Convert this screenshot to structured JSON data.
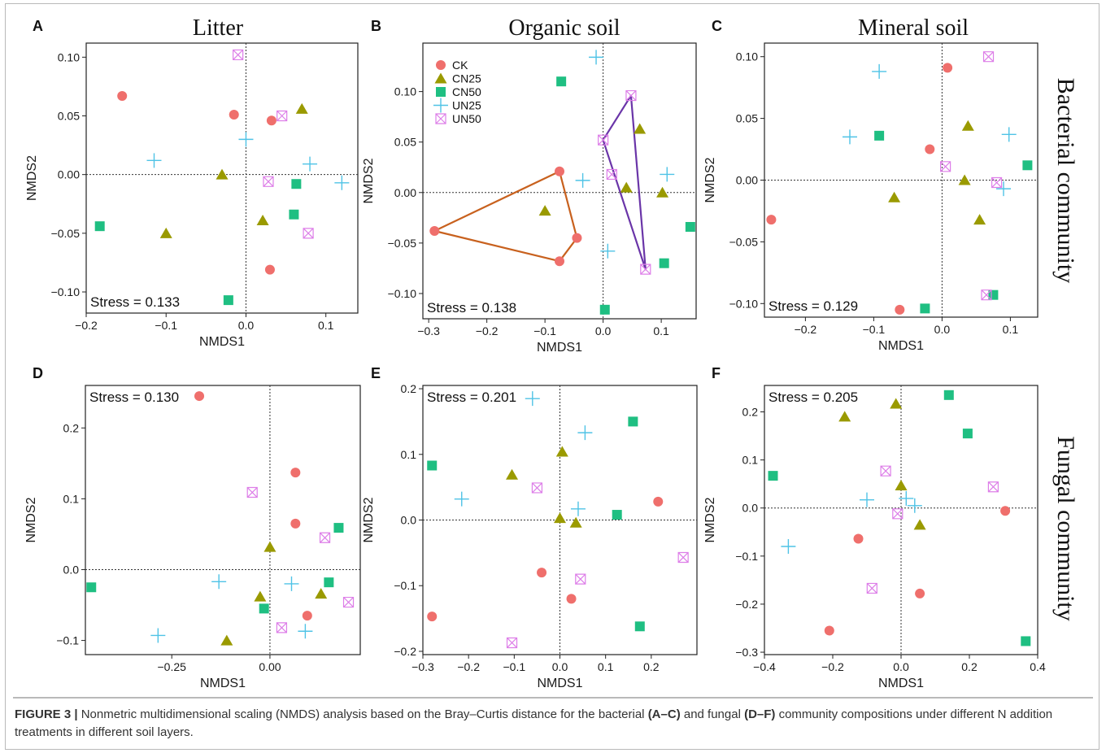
{
  "colors": {
    "CK": "#ef6f6c",
    "CN25": "#9a9a00",
    "CN50": "#1fbf82",
    "UN25": "#4fc3e6",
    "UN50": "#dd7ee8",
    "hull_CK": "#c8611e",
    "hull_UN50": "#6a35a8"
  },
  "legend": [
    "CK",
    "CN25",
    "CN50",
    "UN25",
    "UN50"
  ],
  "row_labels": [
    "Bacterial community",
    "Fungal community"
  ],
  "caption": {
    "label": "FIGURE 3 |",
    "text1": " Nonmetric multidimensional scaling (NMDS) analysis based on the Bray–Curtis distance for the bacterial ",
    "ref1": "(A–C)",
    "text2": " and fungal ",
    "ref2": "(D–F)",
    "text3": " community compositions under different N addition treatments in different soil layers."
  },
  "chart_data": [
    {
      "type": "scatter",
      "letter": "A",
      "title": "Litter",
      "xlabel": "NMDS1",
      "ylabel": "NMDS2",
      "stress": "Stress = 0.133",
      "xlim": [
        -0.2,
        0.14
      ],
      "ylim": [
        -0.118,
        0.112
      ],
      "xticks": [
        -0.2,
        -0.1,
        0.0,
        0.1
      ],
      "xticklabels": [
        "−0.2",
        "−0.1",
        "0.0",
        "0.1"
      ],
      "yticks": [
        -0.1,
        -0.05,
        0.0,
        0.05,
        0.1
      ],
      "yticklabels": [
        "−0.10",
        "−0.05",
        "0.00",
        "0.05",
        "0.10"
      ],
      "series": [
        {
          "name": "CK",
          "points": [
            [
              -0.155,
              0.067
            ],
            [
              -0.015,
              0.051
            ],
            [
              0.032,
              0.046
            ],
            [
              0.03,
              -0.081
            ]
          ]
        },
        {
          "name": "CN25",
          "points": [
            [
              0.07,
              0.056
            ],
            [
              -0.03,
              0.0
            ],
            [
              -0.1,
              -0.05
            ],
            [
              0.021,
              -0.039
            ]
          ]
        },
        {
          "name": "CN50",
          "points": [
            [
              -0.183,
              -0.044
            ],
            [
              0.063,
              -0.008
            ],
            [
              0.06,
              -0.034
            ],
            [
              -0.022,
              -0.107
            ]
          ]
        },
        {
          "name": "UN25",
          "points": [
            [
              -0.115,
              0.012
            ],
            [
              0.0,
              0.03
            ],
            [
              0.08,
              0.009
            ],
            [
              0.12,
              -0.007
            ]
          ]
        },
        {
          "name": "UN50",
          "points": [
            [
              -0.01,
              0.102
            ],
            [
              0.045,
              0.05
            ],
            [
              0.028,
              -0.006
            ],
            [
              0.078,
              -0.05
            ]
          ]
        }
      ],
      "hulls": []
    },
    {
      "type": "scatter",
      "letter": "B",
      "title": "Organic soil",
      "xlabel": "NMDS1",
      "ylabel": "NMDS2",
      "stress": "Stress = 0.138",
      "xlim": [
        -0.31,
        0.16
      ],
      "ylim": [
        -0.125,
        0.148
      ],
      "xticks": [
        -0.3,
        -0.2,
        -0.1,
        0.0,
        0.1
      ],
      "xticklabels": [
        "−0.3",
        "−0.2",
        "−0.1",
        "0.0",
        "0.1"
      ],
      "yticks": [
        -0.1,
        -0.05,
        0.0,
        0.05,
        0.1
      ],
      "yticklabels": [
        "−0.10",
        "−0.05",
        "0.00",
        "0.05",
        "0.10"
      ],
      "legend_position": "top-left",
      "series": [
        {
          "name": "CK",
          "points": [
            [
              -0.075,
              0.021
            ],
            [
              -0.045,
              -0.045
            ],
            [
              -0.075,
              -0.068
            ],
            [
              -0.29,
              -0.038
            ]
          ]
        },
        {
          "name": "CN25",
          "points": [
            [
              0.063,
              0.063
            ],
            [
              0.04,
              0.005
            ],
            [
              0.102,
              0.0
            ],
            [
              -0.1,
              -0.018
            ]
          ]
        },
        {
          "name": "CN50",
          "points": [
            [
              -0.072,
              0.11
            ],
            [
              0.15,
              -0.034
            ],
            [
              0.105,
              -0.07
            ],
            [
              0.003,
              -0.116
            ]
          ]
        },
        {
          "name": "UN25",
          "points": [
            [
              -0.012,
              0.134
            ],
            [
              -0.035,
              0.012
            ],
            [
              0.11,
              0.018
            ],
            [
              0.008,
              -0.058
            ]
          ]
        },
        {
          "name": "UN50",
          "points": [
            [
              0.048,
              0.096
            ],
            [
              0.0,
              0.052
            ],
            [
              0.015,
              0.018
            ],
            [
              0.073,
              -0.076
            ]
          ]
        }
      ],
      "hulls": [
        {
          "name": "CK",
          "points": [
            [
              -0.075,
              0.021
            ],
            [
              -0.045,
              -0.045
            ],
            [
              -0.075,
              -0.068
            ],
            [
              -0.29,
              -0.038
            ]
          ]
        },
        {
          "name": "UN50",
          "points": [
            [
              0.048,
              0.096
            ],
            [
              0.073,
              -0.076
            ],
            [
              0.0,
              0.052
            ]
          ]
        }
      ]
    },
    {
      "type": "scatter",
      "letter": "C",
      "title": "Mineral soil",
      "xlabel": "NMDS1",
      "ylabel": "NMDS2",
      "stress": "Stress = 0.129",
      "xlim": [
        -0.26,
        0.14
      ],
      "ylim": [
        -0.111,
        0.111
      ],
      "xticks": [
        -0.2,
        -0.1,
        0.0,
        0.1
      ],
      "xticklabels": [
        "−0.2",
        "−0.1",
        "0.0",
        "0.1"
      ],
      "yticks": [
        -0.1,
        -0.05,
        0.0,
        0.05,
        0.1
      ],
      "yticklabels": [
        "−0.10",
        "−0.05",
        "0.00",
        "0.05",
        "0.10"
      ],
      "series": [
        {
          "name": "CK",
          "points": [
            [
              0.008,
              0.091
            ],
            [
              -0.018,
              0.025
            ],
            [
              -0.25,
              -0.032
            ],
            [
              -0.062,
              -0.105
            ]
          ]
        },
        {
          "name": "CN25",
          "points": [
            [
              0.038,
              0.044
            ],
            [
              -0.07,
              -0.014
            ],
            [
              0.033,
              0.0
            ],
            [
              0.055,
              -0.032
            ]
          ]
        },
        {
          "name": "CN50",
          "points": [
            [
              -0.092,
              0.036
            ],
            [
              0.125,
              0.012
            ],
            [
              -0.025,
              -0.104
            ],
            [
              0.075,
              -0.093
            ]
          ]
        },
        {
          "name": "UN25",
          "points": [
            [
              -0.092,
              0.088
            ],
            [
              -0.135,
              0.035
            ],
            [
              0.098,
              0.037
            ],
            [
              0.09,
              -0.007
            ]
          ]
        },
        {
          "name": "UN50",
          "points": [
            [
              0.068,
              0.1
            ],
            [
              0.005,
              0.011
            ],
            [
              0.08,
              -0.002
            ],
            [
              0.065,
              -0.093
            ]
          ]
        }
      ],
      "hulls": []
    },
    {
      "type": "scatter",
      "letter": "D",
      "title": "",
      "xlabel": "NMDS1",
      "ylabel": "NMDS2",
      "stress": "Stress = 0.130",
      "xlim": [
        -0.47,
        0.23
      ],
      "ylim": [
        -0.12,
        0.26
      ],
      "xticks": [
        -0.25,
        0.0
      ],
      "xticklabels": [
        "−0.25",
        "0.00"
      ],
      "yticks": [
        -0.1,
        0.0,
        0.1,
        0.2
      ],
      "yticklabels": [
        "−0.1",
        "0.0",
        "0.1",
        "0.2"
      ],
      "series": [
        {
          "name": "CK",
          "points": [
            [
              -0.18,
              0.245
            ],
            [
              0.065,
              0.137
            ],
            [
              0.065,
              0.065
            ],
            [
              0.095,
              -0.065
            ]
          ]
        },
        {
          "name": "CN25",
          "points": [
            [
              0.0,
              0.032
            ],
            [
              -0.025,
              -0.038
            ],
            [
              0.13,
              -0.034
            ],
            [
              -0.11,
              -0.1
            ]
          ]
        },
        {
          "name": "CN50",
          "points": [
            [
              0.175,
              0.059
            ],
            [
              0.15,
              -0.018
            ],
            [
              -0.015,
              -0.055
            ],
            [
              -0.455,
              -0.025
            ]
          ]
        },
        {
          "name": "UN25",
          "points": [
            [
              -0.13,
              -0.017
            ],
            [
              0.055,
              -0.02
            ],
            [
              0.09,
              -0.087
            ],
            [
              -0.285,
              -0.093
            ]
          ]
        },
        {
          "name": "UN50",
          "points": [
            [
              -0.045,
              0.109
            ],
            [
              0.14,
              0.045
            ],
            [
              0.2,
              -0.046
            ],
            [
              0.03,
              -0.082
            ]
          ]
        }
      ],
      "hulls": []
    },
    {
      "type": "scatter",
      "letter": "E",
      "title": "",
      "xlabel": "NMDS1",
      "ylabel": "NMDS2",
      "stress": "Stress = 0.201",
      "xlim": [
        -0.3,
        0.3
      ],
      "ylim": [
        -0.205,
        0.205
      ],
      "xticks": [
        -0.3,
        -0.2,
        -0.1,
        0.0,
        0.1,
        0.2
      ],
      "xticklabels": [
        "−0.3",
        "−0.2",
        "−0.1",
        "0.0",
        "0.1",
        "0.2"
      ],
      "yticks": [
        -0.2,
        -0.1,
        0.0,
        0.1,
        0.2
      ],
      "yticklabels": [
        "−0.2",
        "−0.1",
        "0.0",
        "0.1",
        "0.2"
      ],
      "series": [
        {
          "name": "CK",
          "points": [
            [
              0.215,
              0.028
            ],
            [
              -0.04,
              -0.08
            ],
            [
              0.025,
              -0.12
            ],
            [
              -0.28,
              -0.147
            ]
          ]
        },
        {
          "name": "CN25",
          "points": [
            [
              -0.105,
              0.069
            ],
            [
              0.005,
              0.104
            ],
            [
              0.0,
              0.003
            ],
            [
              0.035,
              -0.004
            ]
          ]
        },
        {
          "name": "CN50",
          "points": [
            [
              0.16,
              0.15
            ],
            [
              -0.28,
              0.083
            ],
            [
              0.125,
              0.008
            ],
            [
              0.175,
              -0.162
            ]
          ]
        },
        {
          "name": "UN25",
          "points": [
            [
              -0.06,
              0.185
            ],
            [
              0.055,
              0.133
            ],
            [
              -0.215,
              0.032
            ],
            [
              0.04,
              0.017
            ]
          ]
        },
        {
          "name": "UN50",
          "points": [
            [
              -0.05,
              0.049
            ],
            [
              0.045,
              -0.09
            ],
            [
              0.27,
              -0.057
            ],
            [
              -0.105,
              -0.187
            ]
          ]
        }
      ],
      "hulls": []
    },
    {
      "type": "scatter",
      "letter": "F",
      "title": "",
      "xlabel": "NMDS1",
      "ylabel": "NMDS2",
      "stress": "Stress = 0.205",
      "xlim": [
        -0.4,
        0.4
      ],
      "ylim": [
        -0.305,
        0.255
      ],
      "xticks": [
        -0.4,
        -0.2,
        0.0,
        0.2,
        0.4
      ],
      "xticklabels": [
        "−0.4",
        "−0.2",
        "0.0",
        "0.2",
        "0.4"
      ],
      "yticks": [
        -0.3,
        -0.2,
        -0.1,
        0.0,
        0.1,
        0.2
      ],
      "yticklabels": [
        "−0.3",
        "−0.2",
        "−0.1",
        "0.0",
        "0.1",
        "0.2"
      ],
      "series": [
        {
          "name": "CK",
          "points": [
            [
              0.305,
              -0.006
            ],
            [
              -0.125,
              -0.064
            ],
            [
              0.055,
              -0.178
            ],
            [
              -0.21,
              -0.255
            ]
          ]
        },
        {
          "name": "CN25",
          "points": [
            [
              -0.165,
              0.19
            ],
            [
              -0.015,
              0.217
            ],
            [
              0.0,
              0.047
            ],
            [
              0.055,
              -0.035
            ]
          ]
        },
        {
          "name": "CN50",
          "points": [
            [
              0.14,
              0.235
            ],
            [
              0.195,
              0.155
            ],
            [
              -0.375,
              0.067
            ],
            [
              0.365,
              -0.277
            ]
          ]
        },
        {
          "name": "UN25",
          "points": [
            [
              -0.1,
              0.017
            ],
            [
              0.04,
              0.005
            ],
            [
              0.015,
              0.02
            ],
            [
              -0.33,
              -0.08
            ]
          ]
        },
        {
          "name": "UN50",
          "points": [
            [
              -0.045,
              0.077
            ],
            [
              0.27,
              0.044
            ],
            [
              -0.01,
              -0.012
            ],
            [
              -0.085,
              -0.167
            ]
          ]
        }
      ],
      "hulls": []
    }
  ]
}
